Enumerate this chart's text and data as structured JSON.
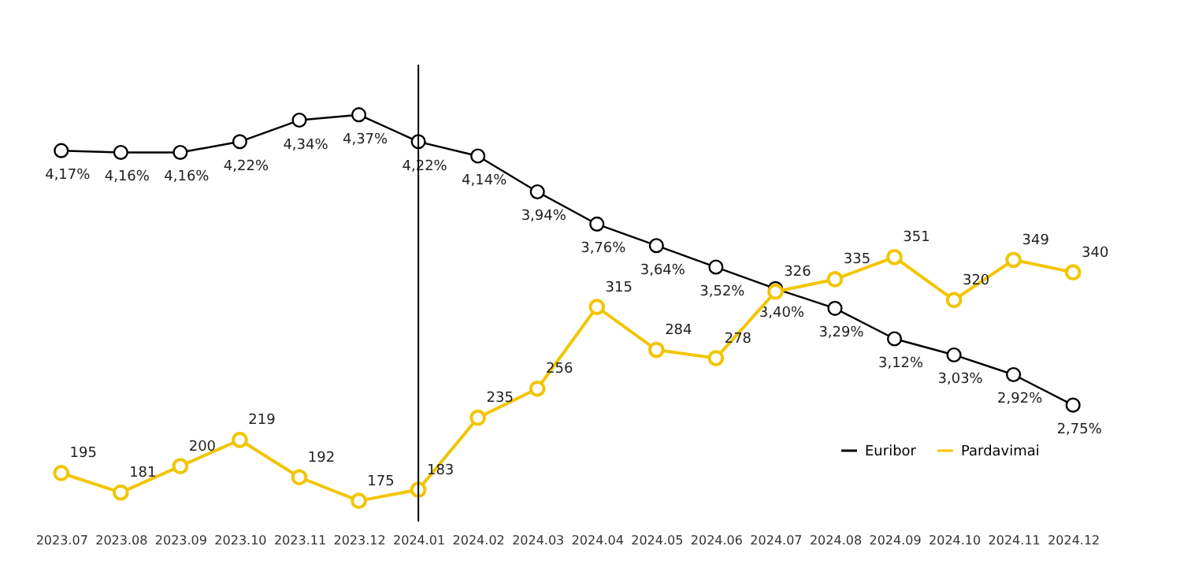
{
  "chart_data": {
    "type": "line",
    "categories": [
      "2023.07",
      "2023.08",
      "2023.09",
      "2023.10",
      "2023.11",
      "2023.12",
      "2024.01",
      "2024.02",
      "2024.03",
      "2024.04",
      "2024.05",
      "2024.06",
      "2024.07",
      "2024.08",
      "2024.09",
      "2024.10",
      "2024.11",
      "2024.12"
    ],
    "series": [
      {
        "name": "Euribor",
        "color": "#000000",
        "values": [
          4.17,
          4.16,
          4.16,
          4.22,
          4.34,
          4.37,
          4.22,
          4.14,
          3.94,
          3.76,
          3.64,
          3.52,
          3.4,
          3.29,
          3.12,
          3.03,
          2.92,
          2.75
        ],
        "value_labels": [
          "4,17%",
          "4,16%",
          "4,16%",
          "4,22%",
          "4,34%",
          "4,37%",
          "4,22%",
          "4,14%",
          "3,94%",
          "3,76%",
          "3,64%",
          "3,52%",
          "3,40%",
          "3,29%",
          "3,12%",
          "3,03%",
          "2,92%",
          "2,75%"
        ]
      },
      {
        "name": "Pardavimai",
        "color": "#f2c500",
        "axis": "y2",
        "values": [
          195,
          181,
          200,
          219,
          192,
          175,
          183,
          235,
          256,
          315,
          284,
          278,
          326,
          335,
          351,
          320,
          349,
          340
        ],
        "value_labels": [
          "195",
          "181",
          "200",
          "219",
          "192",
          "175",
          "183",
          "235",
          "256",
          "315",
          "284",
          "278",
          "326",
          "335",
          "351",
          "320",
          "349",
          "340"
        ]
      }
    ],
    "ylim": [
      2.1,
      4.65
    ],
    "y2lim": [
      160,
      490
    ],
    "tick_labels": "x",
    "grid": false,
    "legend": "bottom right",
    "marker": "circle",
    "line_style": "solid",
    "ref_lines": [
      {
        "axis": "x",
        "value": "2024.01",
        "color": "#000000"
      }
    ]
  }
}
